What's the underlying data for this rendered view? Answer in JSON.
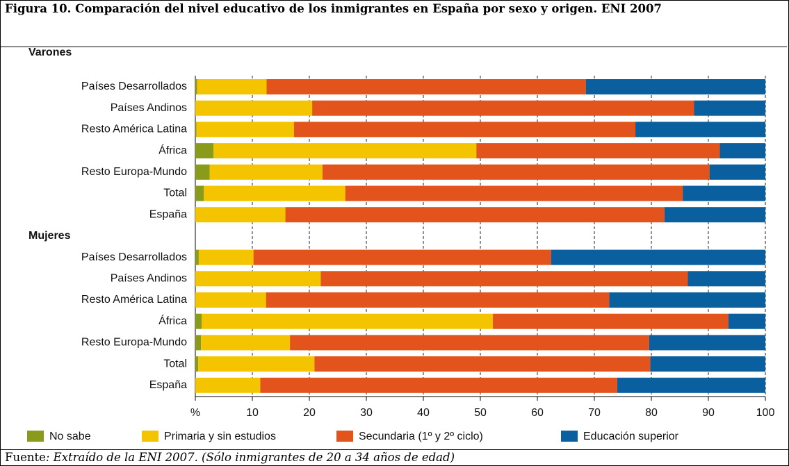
{
  "title": "Figura 10. Comparación del nivel educativo de los inmigrantes en España por sexo y origen. ENI 2007",
  "source": {
    "label": "Fuente",
    "text": ": Extraído de la ENI 2007. (Sólo inmigrantes de 20 a 34 años de edad)"
  },
  "chart_data": {
    "type": "stacked-bar-horizontal",
    "groups": [
      {
        "name": "Varones",
        "categories": [
          "Países Desarrollados",
          "Países Andinos",
          "Resto América Latina",
          "África",
          "Resto Europa-Mundo",
          "Total",
          "España"
        ]
      },
      {
        "name": "Mujeres",
        "categories": [
          "Países Desarrollados",
          "Países Andinos",
          "Resto América Latina",
          "África",
          "Resto Europa-Mundo",
          "Total",
          "España"
        ]
      }
    ],
    "series": [
      {
        "name": "No sabe",
        "color": "#8a9a1a",
        "values": [
          0.3,
          0,
          0.2,
          3.2,
          2.5,
          1.5,
          0,
          0.6,
          0,
          0,
          1.1,
          1.0,
          0.5,
          0
        ]
      },
      {
        "name": "Primaria y sin estudios",
        "color": "#f5c400",
        "values": [
          12.2,
          20.5,
          17.1,
          46.1,
          19.8,
          24.8,
          15.8,
          9.6,
          22.0,
          12.4,
          51.1,
          15.6,
          20.4,
          11.4
        ]
      },
      {
        "name": "Secundaria (1º y 2º ciclo)",
        "color": "#e2541c",
        "values": [
          56.0,
          67.0,
          59.9,
          42.7,
          67.9,
          59.2,
          66.5,
          52.2,
          64.4,
          60.2,
          41.3,
          63.0,
          58.9,
          62.6
        ]
      },
      {
        "name": "Educación superior",
        "color": "#0a5f9e",
        "values": [
          31.5,
          12.5,
          22.8,
          8.0,
          9.8,
          14.5,
          17.7,
          37.6,
          13.6,
          27.4,
          6.5,
          20.4,
          20.2,
          26.0
        ]
      }
    ],
    "xlim": [
      0,
      100
    ],
    "xticks": [
      {
        "value": 0,
        "label": "%"
      },
      10,
      20,
      30,
      40,
      50,
      60,
      70,
      80,
      90,
      100
    ],
    "grid": true,
    "legend": "bottom"
  }
}
